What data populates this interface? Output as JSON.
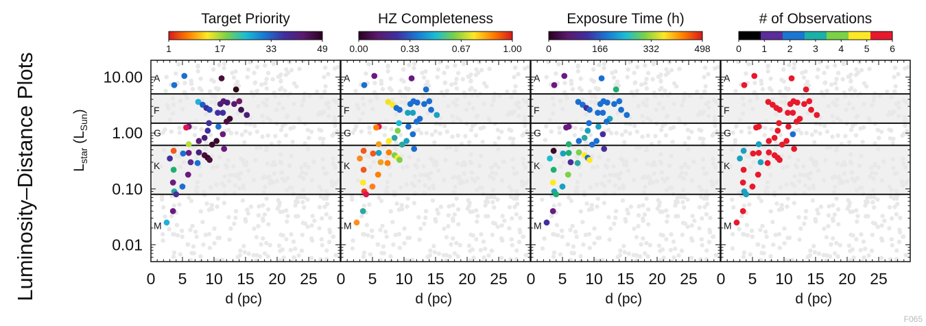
{
  "figure": {
    "side_title": "Luminosity–Distance Plots",
    "ylabel_main": "L",
    "ylabel_sub1": "star",
    "ylabel_mid": " (L",
    "ylabel_sub2": "Sun",
    "ylabel_end": ")",
    "code": "F065",
    "background_color": "#f0f0f0",
    "axis": {
      "xlim": [
        0,
        30
      ],
      "ylim": [
        0.005,
        20
      ],
      "y_scale": "log",
      "x_ticks": [
        0,
        5,
        10,
        15,
        20,
        25
      ],
      "y_ticks": [
        0.01,
        0.1,
        1.0,
        10.0
      ],
      "y_tick_labels": [
        "0.01",
        "0.10",
        "1.00",
        "10.00"
      ],
      "xlabel": "d (pc)"
    },
    "spectral_types": [
      {
        "label": "A",
        "label_y": 9.6
      },
      {
        "label": "F",
        "label_y": 2.55
      },
      {
        "label": "G",
        "label_y": 1.0
      },
      {
        "label": "K",
        "label_y": 0.26
      },
      {
        "label": "M",
        "label_y": 0.022
      }
    ],
    "boundary_lines": [
      5.0,
      1.5,
      0.6,
      0.08
    ],
    "shaded_bands": [
      [
        1.5,
        5.0
      ],
      [
        0.08,
        0.6
      ]
    ]
  },
  "chart_data": {
    "type": "scatter",
    "x_label": "d (pc)",
    "y_label": "Lstar (LSun)",
    "y_scale": "log",
    "xlim": [
      0,
      30
    ],
    "ylim": [
      0.005,
      20
    ],
    "points": [
      {
        "x": 3.7,
        "y": 7.2
      },
      {
        "x": 5.3,
        "y": 10.5
      },
      {
        "x": 11.2,
        "y": 9.5
      },
      {
        "x": 13.5,
        "y": 6.0
      },
      {
        "x": 7.5,
        "y": 3.6
      },
      {
        "x": 8.2,
        "y": 3.2
      },
      {
        "x": 8.8,
        "y": 2.8
      },
      {
        "x": 9.3,
        "y": 2.6
      },
      {
        "x": 10.6,
        "y": 2.3
      },
      {
        "x": 11.0,
        "y": 3.3
      },
      {
        "x": 11.5,
        "y": 3.7
      },
      {
        "x": 12.1,
        "y": 3.5
      },
      {
        "x": 13.2,
        "y": 3.3
      },
      {
        "x": 14.0,
        "y": 3.7
      },
      {
        "x": 14.3,
        "y": 2.6
      },
      {
        "x": 15.2,
        "y": 2.1
      },
      {
        "x": 11.4,
        "y": 2.3
      },
      {
        "x": 12.5,
        "y": 1.8
      },
      {
        "x": 12.0,
        "y": 1.6
      },
      {
        "x": 9.2,
        "y": 1.5
      },
      {
        "x": 10.7,
        "y": 1.3
      },
      {
        "x": 9.0,
        "y": 1.1
      },
      {
        "x": 6.0,
        "y": 1.3
      },
      {
        "x": 5.6,
        "y": 1.25
      },
      {
        "x": 11.4,
        "y": 0.95
      },
      {
        "x": 8.5,
        "y": 0.82
      },
      {
        "x": 7.6,
        "y": 0.72
      },
      {
        "x": 10.4,
        "y": 0.72
      },
      {
        "x": 6.0,
        "y": 0.63
      },
      {
        "x": 9.7,
        "y": 0.62
      },
      {
        "x": 11.6,
        "y": 0.52
      },
      {
        "x": 3.6,
        "y": 0.48
      },
      {
        "x": 5.1,
        "y": 0.43
      },
      {
        "x": 6.0,
        "y": 0.44
      },
      {
        "x": 7.6,
        "y": 0.45
      },
      {
        "x": 8.5,
        "y": 0.4
      },
      {
        "x": 9.0,
        "y": 0.36
      },
      {
        "x": 9.3,
        "y": 0.33
      },
      {
        "x": 3.0,
        "y": 0.35
      },
      {
        "x": 6.3,
        "y": 0.3
      },
      {
        "x": 7.4,
        "y": 0.29
      },
      {
        "x": 3.6,
        "y": 0.22
      },
      {
        "x": 5.9,
        "y": 0.18
      },
      {
        "x": 3.5,
        "y": 0.13
      },
      {
        "x": 5.0,
        "y": 0.11
      },
      {
        "x": 3.7,
        "y": 0.09
      },
      {
        "x": 4.0,
        "y": 0.08
      },
      {
        "x": 3.5,
        "y": 0.04
      },
      {
        "x": 2.5,
        "y": 0.025
      }
    ],
    "panels": [
      {
        "title": "Target Priority",
        "colorbar": {
          "tick_labels": [
            "1",
            "17",
            "33",
            "49"
          ],
          "colors": [
            "#d7191c",
            "#ff7f00",
            "#fee825",
            "#7bd148",
            "#1bbcd4",
            "#1a76d2",
            "#3f2f9f",
            "#5a1a6f",
            "#2b0020"
          ]
        },
        "point_colors": [
          "#1a6fd1",
          "#1a6fd1",
          "#4a0f3e",
          "#2b0a1a",
          "#22b0d8",
          "#1a5fc8",
          "#3a2d9a",
          "#2a45b8",
          "#3f2f9f",
          "#4a1d7a",
          "#5a1a6f",
          "#4a1d7a",
          "#5a1a6f",
          "#6a1a60",
          "#3b1556",
          "#4a1d7a",
          "#3f2f9f",
          "#3a0a30",
          "#4a0f3e",
          "#3f2f9f",
          "#1a6fd1",
          "#3f2f9f",
          "#6a1a80",
          "#e0134e",
          "#6a1a80",
          "#4a1d7a",
          "#5a1a6f",
          "#3b0a2a",
          "#b9df3a",
          "#3b0a2a",
          "#6a1a80",
          "#ef5a1e",
          "#1a6fd1",
          "#6a1a80",
          "#4a1d7a",
          "#4a0f3e",
          "#3b0a2a",
          "#4a0f3e",
          "#3f2f9f",
          "#5a2d8a",
          "#1a6fd1",
          "#1db070",
          "#6a1a80",
          "#6a1a80",
          "#1a6fd1",
          "#2aa7a0",
          "#4a2d9a",
          "#6a1a80",
          "#22b0d8"
        ]
      },
      {
        "title": "HZ Completeness",
        "colorbar": {
          "tick_labels": [
            "0.00",
            "0.33",
            "0.67",
            "1.00"
          ],
          "colors": [
            "#2b0020",
            "#5a1a6f",
            "#3f2f9f",
            "#1a76d2",
            "#1bbcd4",
            "#7bd148",
            "#fee825",
            "#ff7f00",
            "#d7191c"
          ]
        },
        "point_colors": [
          "#1a6fd1",
          "#6a1a80",
          "#6a1a80",
          "#1a6fd1",
          "#f2e022",
          "#fee825",
          "#1a6fd1",
          "#1a6fd1",
          "#1aa0c0",
          "#1a6fd1",
          "#1a6fd1",
          "#1a6fd1",
          "#1a6fd1",
          "#1a6fd1",
          "#1a6fd1",
          "#1aa0c0",
          "#1aa0c0",
          "#1a6fd1",
          "#1a6fd1",
          "#1bbcd4",
          "#1a6fd1",
          "#7bd148",
          "#e0134e",
          "#ff7f00",
          "#1a6fd1",
          "#2aa7a0",
          "#fee825",
          "#1aa0c0",
          "#f0a020",
          "#2aa7a0",
          "#1a6fd1",
          "#ef5a1e",
          "#ef5a1e",
          "#1aa0c0",
          "#ff7f00",
          "#7bd148",
          "#fee825",
          "#7bd148",
          "#f58a20",
          "#f0a020",
          "#ff7f00",
          "#ef5a1e",
          "#ff7f00",
          "#fee825",
          "#fa8020",
          "#ef3a20",
          "#e0134e",
          "#2aa7a0",
          "#ff9020"
        ]
      },
      {
        "title": "Exposure Time (h)",
        "colorbar": {
          "tick_labels": [
            "0",
            "166",
            "332",
            "498"
          ],
          "colors": [
            "#2b0020",
            "#5a1a6f",
            "#3f2f9f",
            "#1a76d2",
            "#1bbcd4",
            "#7bd148",
            "#fee825",
            "#ff7f00",
            "#d7191c"
          ]
        },
        "point_colors": [
          "#6a1a80",
          "#6a1a80",
          "#1a6fd1",
          "#1db070",
          "#1a6fd1",
          "#1a6fd1",
          "#3f2f9f",
          "#1a6fd1",
          "#1a6fd1",
          "#1a6fd1",
          "#1a6fd1",
          "#1a6fd1",
          "#1a6fd1",
          "#1a6fd1",
          "#1a6fd1",
          "#1a6fd1",
          "#1a6fd1",
          "#1aa0c0",
          "#1a6fd1",
          "#1a6fd1",
          "#1aa0c0",
          "#1aa0c0",
          "#6a1a80",
          "#6a1a80",
          "#4a2d9a",
          "#2aa7a0",
          "#1a6fd1",
          "#1a6fd1",
          "#1db070",
          "#1a6fd1",
          "#4a2d9a",
          "#3b0a2a",
          "#1aa0c0",
          "#1db070",
          "#7bd148",
          "#fee825",
          "#1a6fd1",
          "#fee825",
          "#1bbcd4",
          "#4a2d9a",
          "#2aa7a0",
          "#1db070",
          "#7bd148",
          "#fee825",
          "#1aa0c0",
          "#1aa0c0",
          "#1db070",
          "#6a1a80",
          "#3f2f9f"
        ]
      },
      {
        "title": "# of Observations",
        "colorbar": {
          "tick_labels": [
            "0",
            "1",
            "2",
            "3",
            "4",
            "5",
            "6"
          ],
          "colors": [
            "#000000",
            "#5a2d9a",
            "#1a76d2",
            "#1bb0a8",
            "#7bd148",
            "#fee825",
            "#e8192c"
          ],
          "discrete": true
        },
        "point_colors": [
          "#e8192c",
          "#e8192c",
          "#e8192c",
          "#e8192c",
          "#e8192c",
          "#e8192c",
          "#e8192c",
          "#e8192c",
          "#e8192c",
          "#e8192c",
          "#e8192c",
          "#e8192c",
          "#e8192c",
          "#e8192c",
          "#e8192c",
          "#e8192c",
          "#e8192c",
          "#e8192c",
          "#e8192c",
          "#e8192c",
          "#e8192c",
          "#e8192c",
          "#e8192c",
          "#e8192c",
          "#1a6fd1",
          "#e8192c",
          "#e8192c",
          "#e8192c",
          "#1aa0c0",
          "#e8192c",
          "#e8192c",
          "#1aa0c0",
          "#e8192c",
          "#e8192c",
          "#e8192c",
          "#e8192c",
          "#e8192c",
          "#e8192c",
          "#1aa0c0",
          "#1aa0c0",
          "#e8192c",
          "#e8192c",
          "#e8192c",
          "#e8192c",
          "#e8192c",
          "#1aa0c0",
          "#1aa0c0",
          "#e8192c",
          "#e8192c"
        ]
      }
    ]
  }
}
